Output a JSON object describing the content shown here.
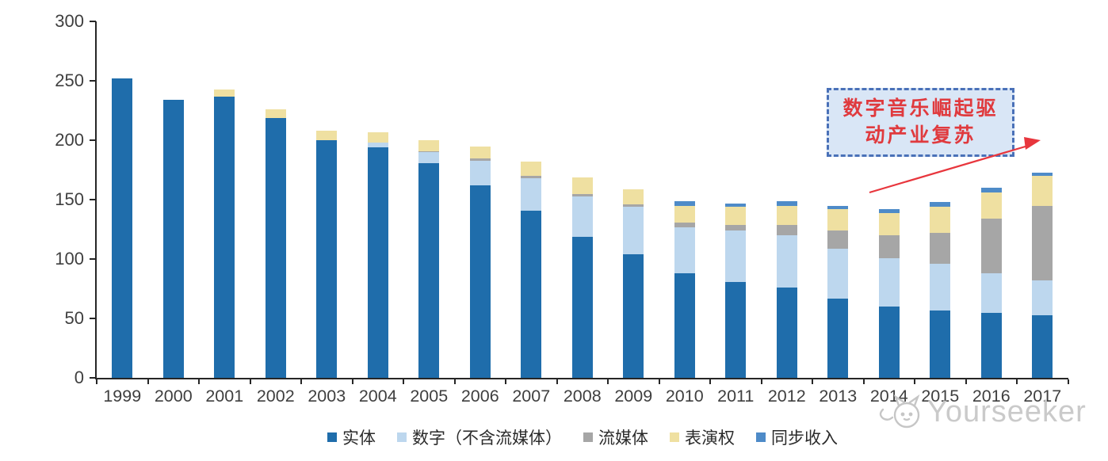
{
  "chart_data": {
    "type": "bar",
    "stacked": true,
    "categories": [
      "1999",
      "2000",
      "2001",
      "2002",
      "2003",
      "2004",
      "2005",
      "2006",
      "2007",
      "2008",
      "2009",
      "2010",
      "2011",
      "2012",
      "2013",
      "2014",
      "2015",
      "2016",
      "2017"
    ],
    "series": [
      {
        "name": "实体",
        "color": "#1f6dab",
        "values": [
          252,
          234,
          237,
          219,
          200,
          194,
          181,
          162,
          141,
          119,
          104,
          88,
          81,
          76,
          67,
          60,
          57,
          55,
          53
        ]
      },
      {
        "name": "数字（不含流媒体）",
        "color": "#bdd7ee",
        "values": [
          0,
          0,
          0,
          0,
          0,
          4,
          9,
          21,
          27,
          34,
          40,
          39,
          43,
          44,
          42,
          41,
          39,
          33,
          29
        ]
      },
      {
        "name": "流媒体",
        "color": "#a6a6a6",
        "values": [
          0,
          0,
          0,
          0,
          0,
          0,
          1,
          2,
          2,
          2,
          2,
          4,
          5,
          9,
          15,
          19,
          26,
          46,
          63
        ]
      },
      {
        "name": "表演权",
        "color": "#efe0a1",
        "values": [
          0,
          0,
          6,
          7,
          8,
          9,
          9,
          10,
          12,
          14,
          13,
          14,
          15,
          16,
          18,
          19,
          22,
          22,
          25
        ]
      },
      {
        "name": "同步收入",
        "color": "#4e8bc8",
        "values": [
          0,
          0,
          0,
          0,
          0,
          0,
          0,
          0,
          0,
          0,
          0,
          4,
          3,
          4,
          3,
          3,
          4,
          4,
          3
        ]
      }
    ],
    "title": "",
    "xlabel": "",
    "ylabel": "",
    "ylim": [
      0,
      300
    ],
    "yticks": [
      0,
      50,
      100,
      150,
      200,
      250,
      300
    ],
    "grid": false,
    "legend_position": "bottom"
  },
  "colors": {
    "axis": "#262626",
    "tick_label": "#3f3f3f"
  },
  "annotation": {
    "line1": "数字音乐崛起驱",
    "line2": "动产业复苏",
    "text_color": "#e03a3e",
    "box_fill": "#d9e6f6",
    "border_color": "#4a71b8",
    "arrow_color": "#e8363d"
  },
  "watermark": {
    "text": "Yourseeker"
  }
}
